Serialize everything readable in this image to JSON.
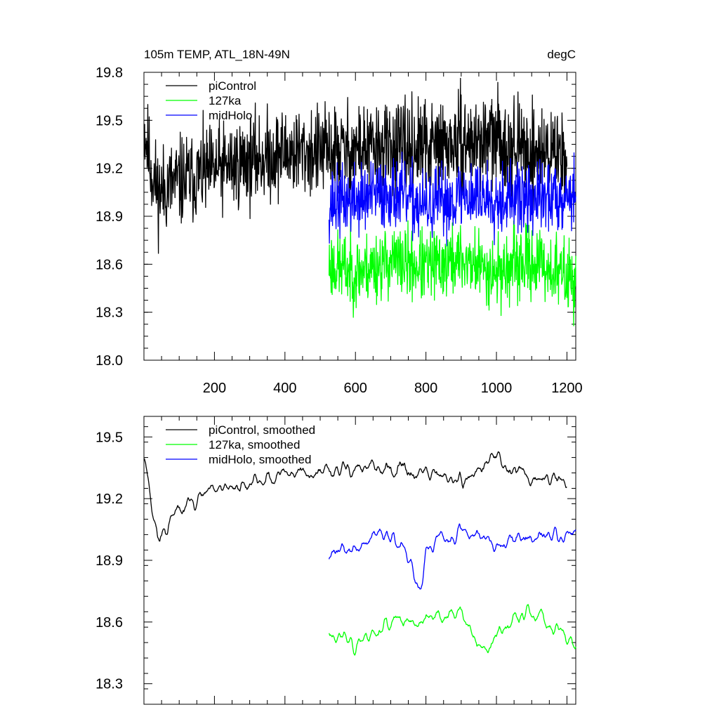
{
  "chart_data": [
    {
      "type": "line",
      "title": "105m TEMP, ATL_18N-49N",
      "units": "degC",
      "xlim": [
        0,
        1225
      ],
      "ylim": [
        18.0,
        19.8
      ],
      "x_ticks": [
        200,
        400,
        600,
        800,
        1000,
        1200
      ],
      "y_ticks": [
        "18.0",
        "18.3",
        "18.6",
        "18.9",
        "19.2",
        "19.5",
        "19.8"
      ],
      "legend_position": "top-left",
      "series": [
        {
          "name": "piControl",
          "color": "#000000",
          "x_start": 1,
          "x_end": 1200,
          "mean": 19.28,
          "amplitude": 0.14,
          "seed": 11,
          "anchors": [
            [
              1,
              19.45
            ],
            [
              20,
              19.2
            ],
            [
              40,
              19.05
            ],
            [
              80,
              19.1
            ],
            [
              150,
              19.15
            ],
            [
              250,
              19.22
            ],
            [
              400,
              19.3
            ],
            [
              500,
              19.3
            ],
            [
              600,
              19.32
            ],
            [
              800,
              19.33
            ],
            [
              1000,
              19.38
            ],
            [
              1100,
              19.3
            ],
            [
              1200,
              19.3
            ]
          ]
        },
        {
          "name": "127ka",
          "color": "#00ff00",
          "x_start": 525,
          "x_end": 1225,
          "mean": 18.6,
          "amplitude": 0.11,
          "seed": 23,
          "anchors": [
            [
              525,
              18.6
            ],
            [
              600,
              18.55
            ],
            [
              700,
              18.62
            ],
            [
              800,
              18.58
            ],
            [
              900,
              18.63
            ],
            [
              1000,
              18.55
            ],
            [
              1100,
              18.62
            ],
            [
              1225,
              18.5
            ]
          ]
        },
        {
          "name": "midHolo",
          "color": "#0000ff",
          "x_start": 525,
          "x_end": 1225,
          "mean": 19.02,
          "amplitude": 0.11,
          "seed": 37,
          "anchors": [
            [
              525,
              18.98
            ],
            [
              600,
              19.0
            ],
            [
              700,
              19.05
            ],
            [
              800,
              18.95
            ],
            [
              900,
              19.03
            ],
            [
              1000,
              19.02
            ],
            [
              1100,
              19.0
            ],
            [
              1225,
              19.05
            ]
          ]
        }
      ]
    },
    {
      "type": "line",
      "title": "",
      "xlim": [
        0,
        1225
      ],
      "ylim": [
        18.2,
        19.6
      ],
      "x_ticks": [
        200,
        400,
        600,
        800,
        1000,
        1200
      ],
      "y_ticks": [
        "18.3",
        "18.6",
        "18.9",
        "19.2",
        "19.5"
      ],
      "legend_position": "top-left",
      "series": [
        {
          "name": "piControl, smoothed",
          "color": "#000000",
          "x_start": 1,
          "x_end": 1200,
          "seed": 11,
          "smooth": true,
          "anchors": [
            [
              1,
              19.45
            ],
            [
              20,
              19.2
            ],
            [
              40,
              19.0
            ],
            [
              80,
              19.1
            ],
            [
              150,
              19.2
            ],
            [
              250,
              19.25
            ],
            [
              400,
              19.33
            ],
            [
              500,
              19.32
            ],
            [
              600,
              19.35
            ],
            [
              800,
              19.32
            ],
            [
              900,
              19.28
            ],
            [
              1000,
              19.4
            ],
            [
              1100,
              19.3
            ],
            [
              1200,
              19.3
            ]
          ]
        },
        {
          "name": "127ka, smoothed",
          "color": "#00ff00",
          "x_start": 525,
          "x_end": 1225,
          "seed": 23,
          "smooth": true,
          "anchors": [
            [
              525,
              18.55
            ],
            [
              600,
              18.5
            ],
            [
              700,
              18.6
            ],
            [
              800,
              18.6
            ],
            [
              900,
              18.65
            ],
            [
              960,
              18.45
            ],
            [
              1000,
              18.55
            ],
            [
              1100,
              18.65
            ],
            [
              1225,
              18.5
            ]
          ]
        },
        {
          "name": "midHolo, smoothed",
          "color": "#0000ff",
          "x_start": 525,
          "x_end": 1225,
          "seed": 37,
          "smooth": true,
          "anchors": [
            [
              525,
              18.95
            ],
            [
              600,
              18.95
            ],
            [
              700,
              19.05
            ],
            [
              790,
              18.75
            ],
            [
              800,
              18.95
            ],
            [
              900,
              19.05
            ],
            [
              1000,
              19.0
            ],
            [
              1100,
              19.0
            ],
            [
              1225,
              19.05
            ]
          ]
        }
      ]
    }
  ]
}
